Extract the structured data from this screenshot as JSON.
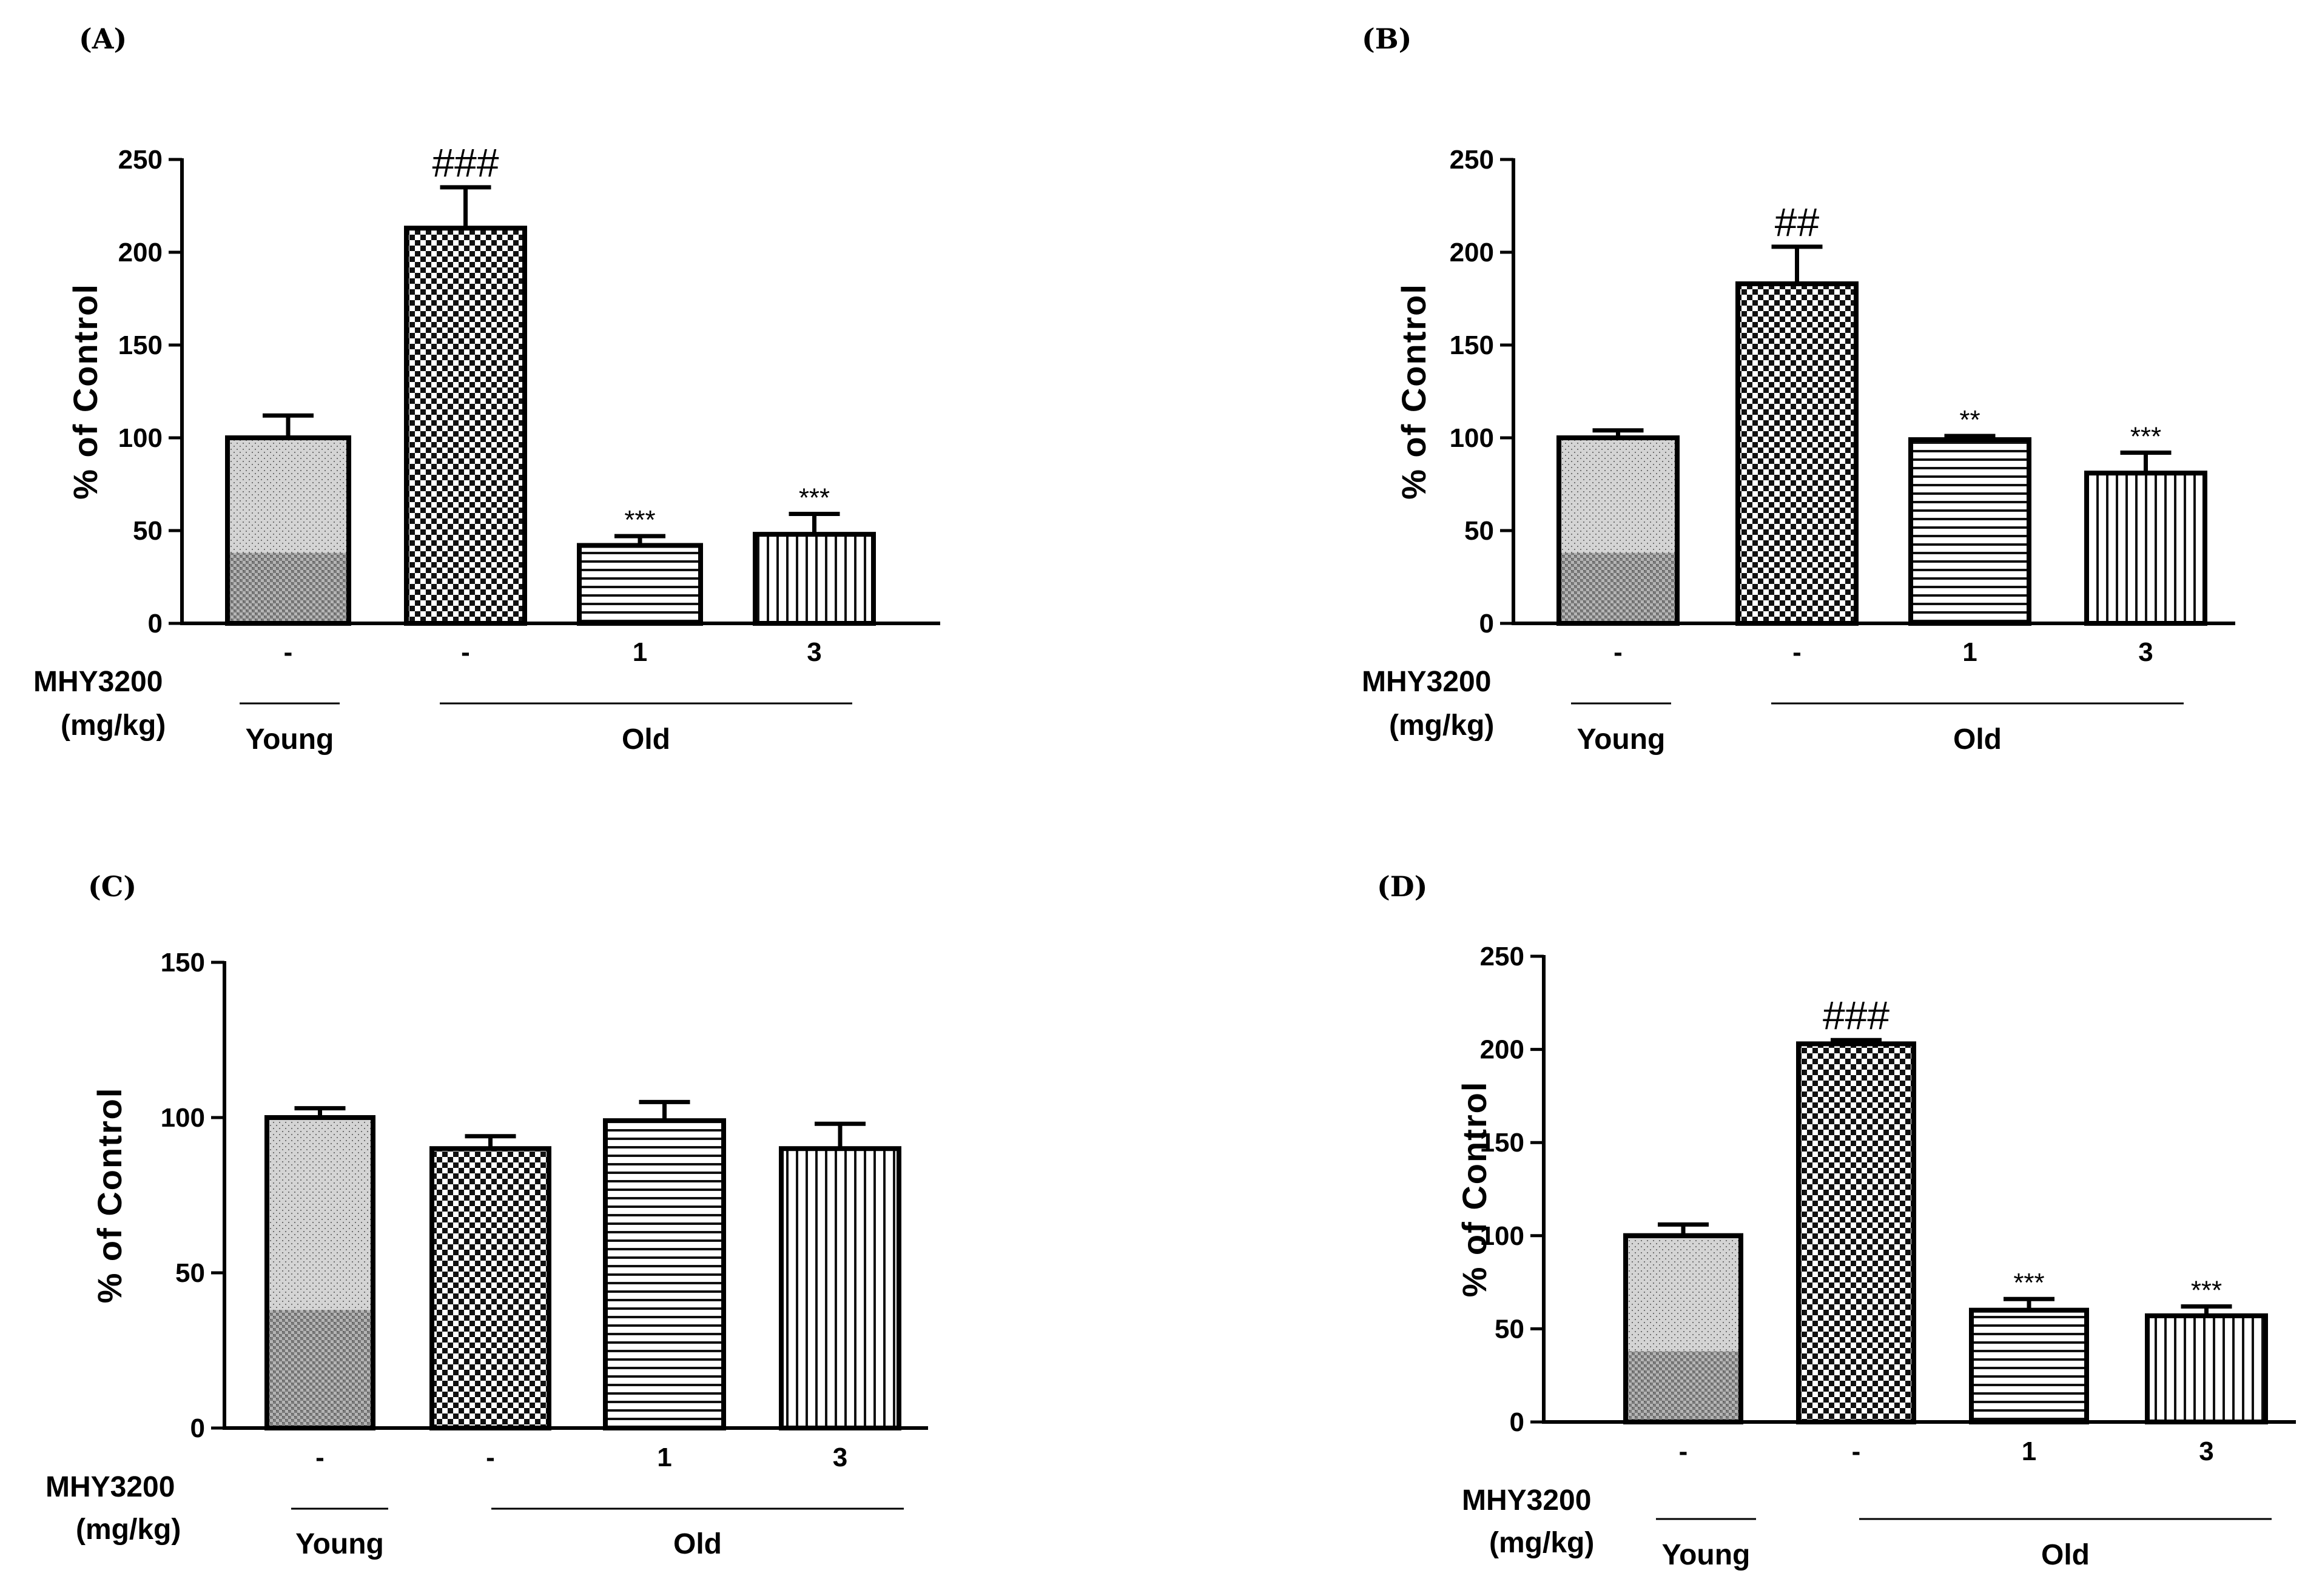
{
  "figure": {
    "x_title": "MHY3200",
    "x_unit": "(mg/kg)",
    "groups": [
      "Young",
      "Old"
    ]
  },
  "chart_data": [
    {
      "type": "bar",
      "panel": "(A)",
      "categories": [
        "-",
        "-",
        "1",
        "3"
      ],
      "groups": [
        "Young",
        "Old",
        "Old",
        "Old"
      ],
      "values": [
        100,
        213,
        42,
        48
      ],
      "errors": [
        12,
        22,
        5,
        11
      ],
      "significance": [
        "",
        "###",
        "***",
        "***"
      ],
      "ylabel": "% of Control",
      "xlabel": "MHY3200 (mg/kg)",
      "ylim": [
        0,
        250
      ],
      "yticks": [
        0,
        50,
        100,
        150,
        200,
        250
      ]
    },
    {
      "type": "bar",
      "panel": "(B)",
      "categories": [
        "-",
        "-",
        "1",
        "3"
      ],
      "groups": [
        "Young",
        "Old",
        "Old",
        "Old"
      ],
      "values": [
        100,
        183,
        99,
        81
      ],
      "errors": [
        4,
        20,
        2,
        11
      ],
      "significance": [
        "",
        "##",
        "**",
        "***"
      ],
      "ylabel": "% of Control",
      "xlabel": "MHY3200 (mg/kg)",
      "ylim": [
        0,
        250
      ],
      "yticks": [
        0,
        50,
        100,
        150,
        200,
        250
      ]
    },
    {
      "type": "bar",
      "panel": "(C)",
      "categories": [
        "-",
        "-",
        "1",
        "3"
      ],
      "groups": [
        "Young",
        "Old",
        "Old",
        "Old"
      ],
      "values": [
        100,
        90,
        99,
        90
      ],
      "errors": [
        3,
        4,
        6,
        8
      ],
      "significance": [
        "",
        "",
        "",
        ""
      ],
      "ylabel": "% of Control",
      "xlabel": "MHY3200 (mg/kg)",
      "ylim": [
        0,
        150
      ],
      "yticks": [
        0,
        50,
        100,
        150
      ]
    },
    {
      "type": "bar",
      "panel": "(D)",
      "categories": [
        "-",
        "-",
        "1",
        "3"
      ],
      "groups": [
        "Young",
        "Old",
        "Old",
        "Old"
      ],
      "values": [
        100,
        203,
        60,
        57
      ],
      "errors": [
        6,
        2,
        6,
        5
      ],
      "significance": [
        "",
        "###",
        "***",
        "***"
      ],
      "ylabel": "% of Control",
      "xlabel": "MHY3200 (mg/kg)",
      "ylim": [
        0,
        250
      ],
      "yticks": [
        0,
        50,
        100,
        150,
        200,
        250
      ]
    }
  ]
}
